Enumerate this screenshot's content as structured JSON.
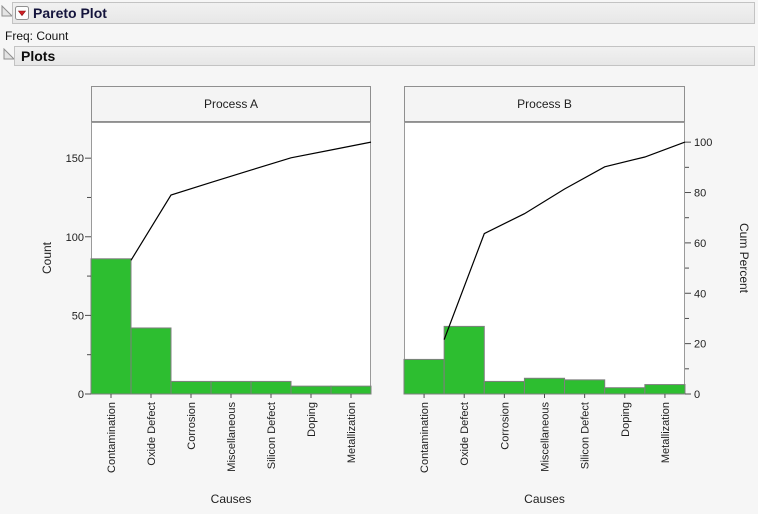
{
  "header": {
    "title": "Pareto Plot",
    "freq_label": "Freq: Count",
    "plots_title": "Plots"
  },
  "chart_data": {
    "type": "pareto",
    "categories": [
      "Contamination",
      "Oxide Defect",
      "Corrosion",
      "Miscellaneous",
      "Silicon Defect",
      "Doping",
      "Metallization"
    ],
    "xlabel": "Causes",
    "panels": [
      {
        "title": "Process A",
        "counts": [
          86,
          42,
          8,
          8,
          8,
          5,
          5
        ],
        "total": 162,
        "cum_percent": [
          53.1,
          79.0,
          84.0,
          88.9,
          93.8,
          96.9,
          100
        ]
      },
      {
        "title": "Process B",
        "counts": [
          22,
          43,
          8,
          10,
          9,
          4,
          6
        ],
        "total": 102,
        "cum_percent": [
          21.6,
          63.7,
          71.6,
          81.4,
          90.2,
          94.1,
          100
        ]
      }
    ],
    "left_axis": {
      "label": "Count",
      "major_ticks": [
        0,
        50,
        100,
        150
      ],
      "minor_ticks": [
        25,
        75,
        125
      ],
      "max": 173
    },
    "right_axis": {
      "label": "Cum Percent",
      "major_ticks": [
        0,
        20,
        40,
        60,
        80,
        100
      ],
      "minor_ticks": [
        10,
        30,
        50,
        70,
        90
      ],
      "max": 108
    },
    "colors": {
      "bar": "#2dbe30",
      "bar_border": "#7f7f7f",
      "line": "#000000",
      "frame": "#9a9a9a",
      "tick": "#4d4d4d",
      "text": "#1e1e1e",
      "panel_title_bg": "#f4f4f4",
      "panel_title_border": "#8f8f8f",
      "plot_bg": "#ffffff"
    }
  }
}
